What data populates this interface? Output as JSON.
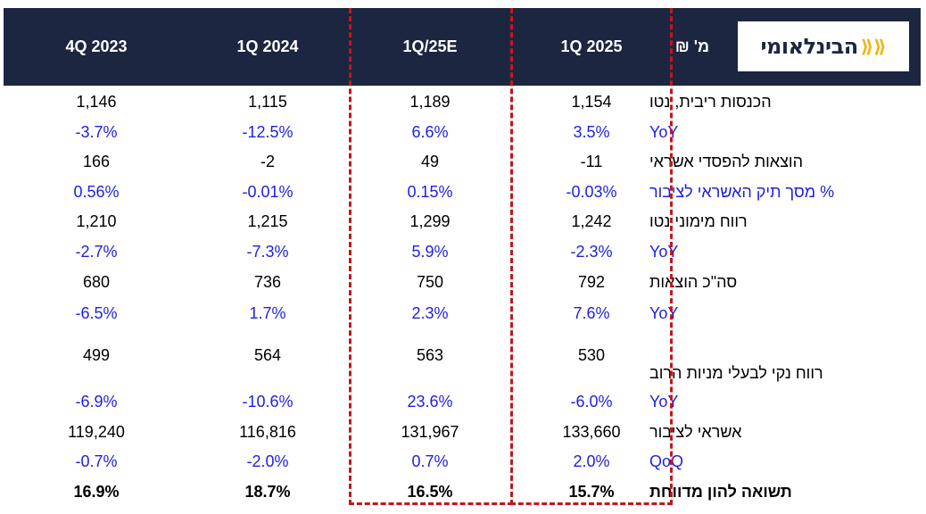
{
  "brand": {
    "logo_text": "הבינלאומי",
    "accent": "#f2b400",
    "header_bg": "#1c2641",
    "highlight": "#c0181e",
    "pct_color": "#1f1fe0"
  },
  "header": {
    "unit_label": "מ' ₪",
    "columns": [
      "1Q 2025",
      "1Q/25E",
      "1Q 2024",
      "4Q 2023"
    ]
  },
  "rows": [
    {
      "label": "הכנסות ריבית, נטו",
      "values": [
        "1,154",
        "1,189",
        "1,115",
        "1,146"
      ]
    },
    {
      "label": "YoY",
      "values": [
        "3.5%",
        "6.6%",
        "-12.5%",
        "-3.7%"
      ]
    },
    {
      "label": "הוצאות להפסדי אשראי",
      "values": [
        "-11",
        "49",
        "-2",
        "166"
      ]
    },
    {
      "label": "% מסך תיק האשראי לציבור",
      "values": [
        "-0.03%",
        "0.15%",
        "-0.01%",
        "0.56%"
      ]
    },
    {
      "label": "רווח מימוני נטו",
      "values": [
        "1,242",
        "1,299",
        "1,215",
        "1,210"
      ]
    },
    {
      "label": "YoY",
      "values": [
        "-2.3%",
        "5.9%",
        "-7.3%",
        "-2.7%"
      ]
    },
    {
      "label": "סה\"כ הוצאות",
      "values": [
        "792",
        "750",
        "736",
        "680"
      ]
    },
    {
      "label": "YoY",
      "values": [
        "7.6%",
        "2.3%",
        "1.7%",
        "-6.5%"
      ]
    },
    {
      "label": "רווח נקי לבעלי מניות הרוב",
      "values": [
        "530",
        "563",
        "564",
        "499"
      ]
    },
    {
      "label": "YoY",
      "values": [
        "-6.0%",
        "23.6%",
        "-10.6%",
        "-6.9%"
      ]
    },
    {
      "label": "אשראי לציבור",
      "values": [
        "133,660",
        "131,967",
        "116,816",
        "119,240"
      ]
    },
    {
      "label": "QoQ",
      "values": [
        "2.0%",
        "0.7%",
        "-2.0%",
        "-0.7%"
      ]
    },
    {
      "label": "תשואה להון מדווחת",
      "values": [
        "15.7%",
        "16.5%",
        "18.7%",
        "16.9%"
      ]
    }
  ]
}
